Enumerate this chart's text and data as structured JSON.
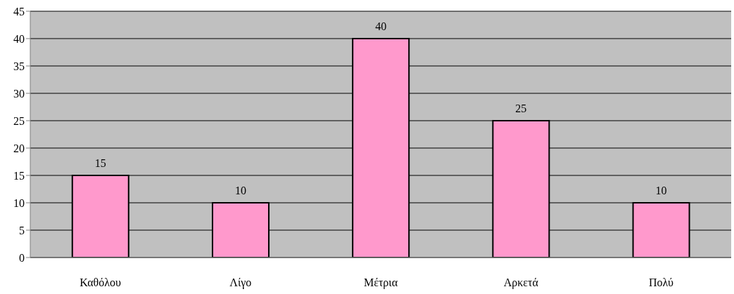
{
  "chart_data": {
    "type": "bar",
    "categories": [
      "Καθόλου",
      "Λίγο",
      "Μέτρια",
      "Αρκετά",
      "Πολύ"
    ],
    "values": [
      15,
      10,
      40,
      25,
      10
    ],
    "color": "#ff99cc",
    "ylim": [
      0,
      45
    ],
    "yticks": [
      0,
      5,
      10,
      15,
      20,
      25,
      30,
      35,
      40,
      45
    ],
    "grid": "y",
    "data_labels": true
  }
}
